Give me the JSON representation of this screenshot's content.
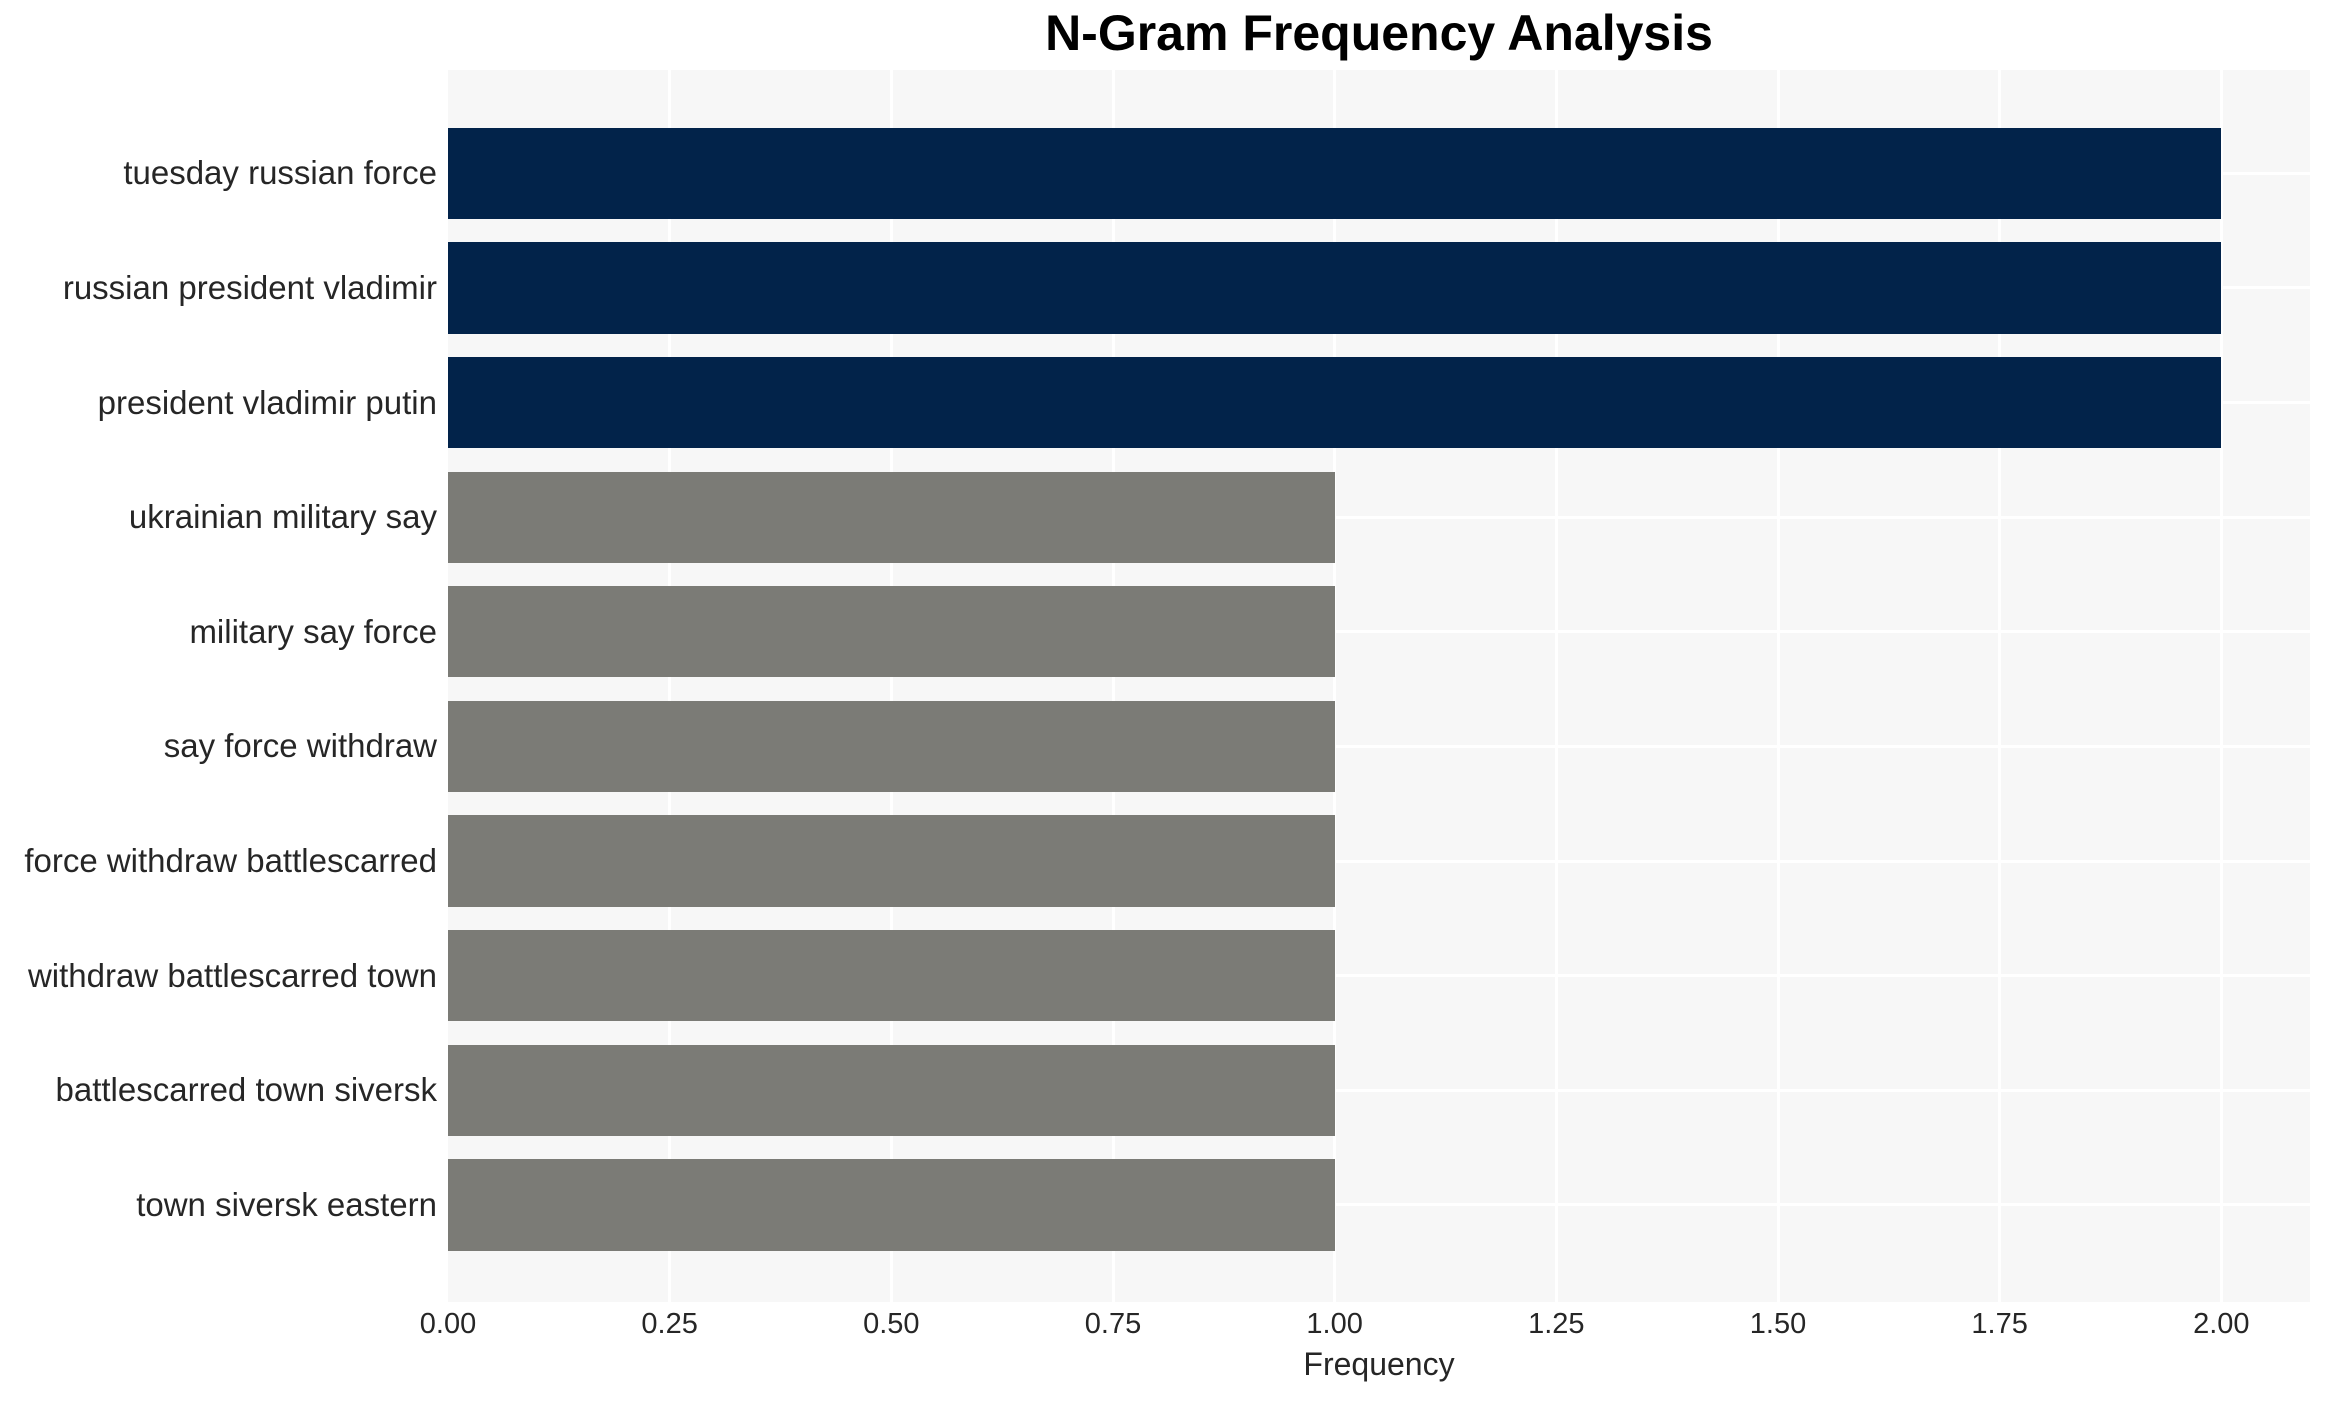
{
  "page": {
    "background": "#FFFFFF"
  },
  "chart_data": {
    "type": "bar",
    "orientation": "horizontal",
    "title": "N-Gram Frequency Analysis",
    "xlabel": "Frequency",
    "ylabel": "",
    "categories": [
      "tuesday russian force",
      "russian president vladimir",
      "president vladimir putin",
      "ukrainian military say",
      "military say force",
      "say force withdraw",
      "force withdraw battlescarred",
      "withdraw battlescarred town",
      "battlescarred town siversk",
      "town siversk eastern"
    ],
    "values": [
      2,
      2,
      2,
      1,
      1,
      1,
      1,
      1,
      1,
      1
    ],
    "bar_colors": [
      "#02234A",
      "#02234A",
      "#02234A",
      "#7B7B76",
      "#7B7B76",
      "#7B7B76",
      "#7B7B76",
      "#7B7B76",
      "#7B7B76",
      "#7B7B76"
    ],
    "color_rule": "frequency 2 = dark navy, frequency 1 = gray",
    "xlim": [
      0,
      2.1
    ],
    "x_ticks": [
      0,
      0.25,
      0.5,
      0.75,
      1.0,
      1.25,
      1.5,
      1.75,
      2.0
    ],
    "x_tick_labels": [
      "0.00",
      "0.25",
      "0.50",
      "0.75",
      "1.00",
      "1.25",
      "1.50",
      "1.75",
      "2.00"
    ],
    "grid": true,
    "gridline_color": "#FFFFFF",
    "plot_bg": "#F7F7F7",
    "axis_text_color": "#262626",
    "title_color": "#000000",
    "legend": false
  }
}
